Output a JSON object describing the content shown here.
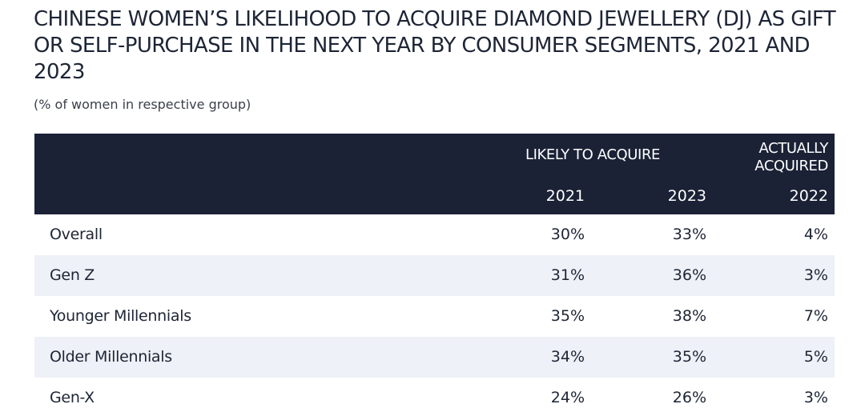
{
  "title": "Chinese women’s likelihood to acquire diamond jewellery (DJ) as gift or self-purchase in the next year by consumer segments, 2021 and 2023",
  "subtitle": "(% of women in respective group)",
  "table": {
    "group_header": "LIKELY TO ACQUIRE",
    "actual_header": "ACTUALLY ACQUIRED",
    "years": [
      "2021",
      "2023",
      "2022"
    ],
    "rows": [
      {
        "label": "Overall",
        "values": [
          "30%",
          "33%",
          "4%"
        ]
      },
      {
        "label": "Gen Z",
        "values": [
          "31%",
          "36%",
          "3%"
        ]
      },
      {
        "label": "Younger Millennials",
        "values": [
          "35%",
          "38%",
          "7%"
        ]
      },
      {
        "label": "Older Millennials",
        "values": [
          "34%",
          "35%",
          "5%"
        ]
      },
      {
        "label": "Gen-X",
        "values": [
          "24%",
          "26%",
          "3%"
        ]
      }
    ]
  },
  "colors": {
    "header_bg": "#1b2236",
    "row_shade": "#eef1f7",
    "text": "#1d2535"
  }
}
